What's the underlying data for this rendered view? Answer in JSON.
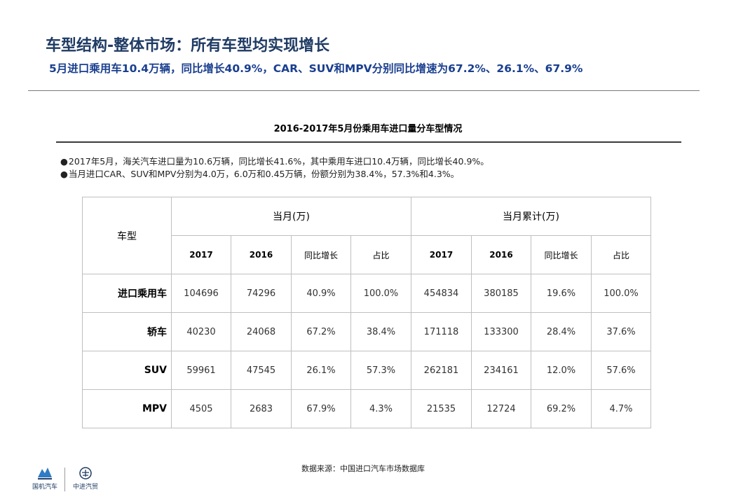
{
  "header": {
    "title": "车型结构-整体市场：所有车型均实现增长",
    "subtitle": "5月进口乘用车10.4万辆，同比增长40.9%，CAR、SUV和MPV分别同比增速为67.2%、26.1%、67.9%"
  },
  "table_title": "2016-2017年5月份乘用车进口量分车型情况",
  "bullets": [
    {
      "symbol": "●",
      "text": "2017年5月，海关汽车进口量为10.6万辆，同比增长41.6%，其中乘用车进口10.4万辆，同比增长40.9%。"
    },
    {
      "symbol": "●",
      "text": "当月进口CAR、SUV和MPV分别为4.0万，6.0万和0.45万辆，份额分别为38.4%，57.3%和4.3%。"
    }
  ],
  "table": {
    "corner": "车型",
    "group_headers": [
      "当月(万)",
      "当月累计(万)"
    ],
    "sub_headers": [
      "2017",
      "2016",
      "同比增长",
      "占比",
      "2017",
      "2016",
      "同比增长",
      "占比"
    ],
    "rows": [
      {
        "label": "进口乘用车",
        "cells": [
          "104696",
          "74296",
          "40.9%",
          "100.0%",
          "454834",
          "380185",
          "19.6%",
          "100.0%"
        ]
      },
      {
        "label": "轿车",
        "cells": [
          "40230",
          "24068",
          "67.2%",
          "38.4%",
          "171118",
          "133300",
          "28.4%",
          "37.6%"
        ]
      },
      {
        "label": "SUV",
        "cells": [
          "59961",
          "47545",
          "26.1%",
          "57.3%",
          "262181",
          "234161",
          "12.0%",
          "57.6%"
        ]
      },
      {
        "label": "MPV",
        "cells": [
          "4505",
          "2683",
          "67.9%",
          "4.3%",
          "21535",
          "12724",
          "69.2%",
          "4.7%"
        ]
      }
    ]
  },
  "source": "数据来源：中国进口汽车市场数据库",
  "logos": {
    "left_text": "国机汽车",
    "right_text": "中进汽贸"
  },
  "colors": {
    "title": "#1f3b64",
    "subtitle": "#1a3f8f",
    "logo_blue": "#2e7cc4"
  }
}
